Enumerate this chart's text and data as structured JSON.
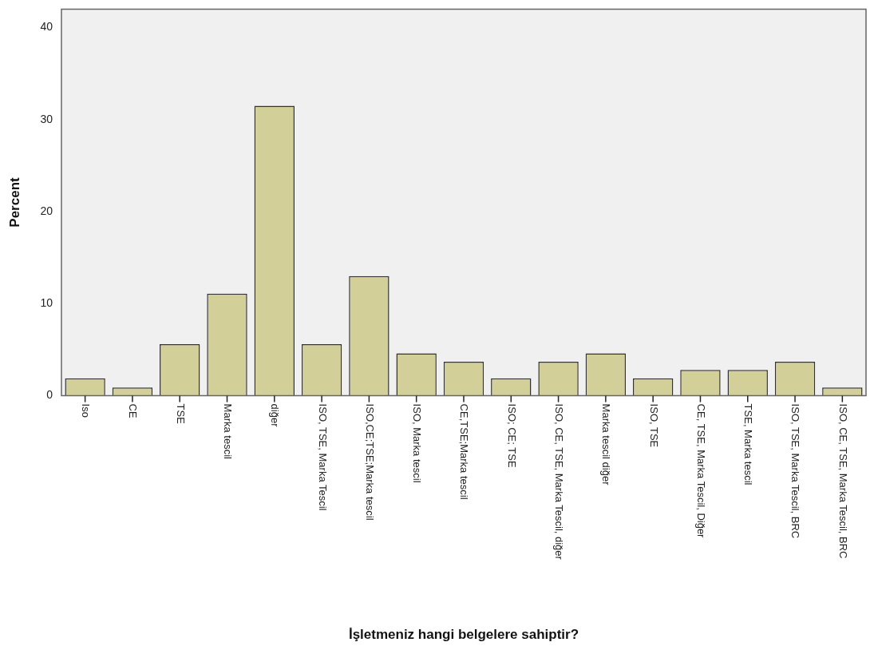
{
  "chart_data": {
    "type": "bar",
    "xlabel": "İşletmeniz hangi belgelere sahiptir?",
    "ylabel": "Percent",
    "categories": [
      "Iso",
      "CE",
      "TSE",
      "Marka tescil",
      "diğer",
      "ISO, TSE, Marka Tescil",
      "ISO,CE;TSE;Marka tescil",
      "ISO, Marka tescil",
      "CE,TSE;Marka tescil",
      "ISO; CE; TSE",
      "ISO, CE, TSE, Marka Tescil, diğer",
      "Marka tescil diğer",
      "ISO, TSE",
      "CE, TSE, Marka Tescil, Diğer",
      "TSE, Marka tescil",
      "ISO, TSE, Marka Tescil, BRC",
      "ISO, CE, TSE, Marka Tescil, BRC"
    ],
    "values": [
      1.9,
      0.9,
      5.6,
      11.1,
      31.5,
      5.6,
      13.0,
      4.6,
      3.7,
      1.9,
      3.7,
      4.6,
      1.9,
      2.8,
      2.8,
      3.7,
      0.9
    ],
    "color": "#d3cf98",
    "ylim": [
      0,
      42
    ],
    "yticks": [
      0,
      10,
      20,
      30,
      40
    ],
    "grid": false,
    "legend": false
  }
}
